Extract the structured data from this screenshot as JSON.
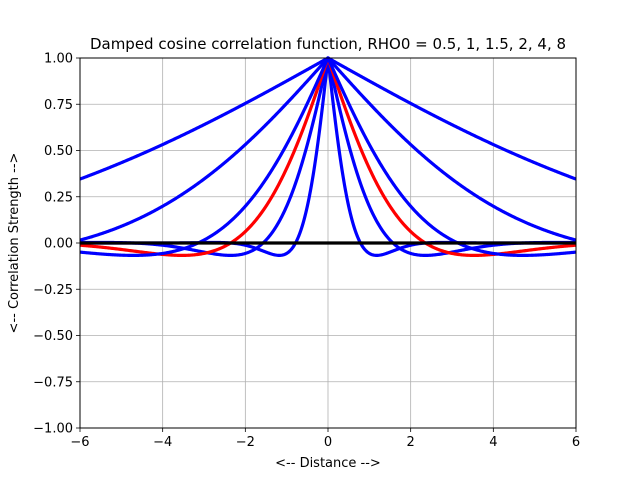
{
  "chart_data": {
    "type": "line",
    "title": "Damped cosine correlation function, RHO0 = 0.5, 1, 1.5, 2, 4, 8",
    "xlabel": "<-- Distance -->",
    "ylabel": "<-- Correlation Strength -->",
    "xlim": [
      -6,
      6
    ],
    "ylim": [
      -1,
      1
    ],
    "xticks": [
      -6,
      -4,
      -2,
      0,
      2,
      4,
      6
    ],
    "xtick_labels": [
      "−6",
      "−4",
      "−2",
      "0",
      "2",
      "4",
      "6"
    ],
    "yticks": [
      -1.0,
      -0.75,
      -0.5,
      -0.25,
      0.0,
      0.25,
      0.5,
      0.75,
      1.0
    ],
    "ytick_labels": [
      "−1.00",
      "−0.75",
      "−0.50",
      "−0.25",
      "0.00",
      "0.25",
      "0.50",
      "0.75",
      "1.00"
    ],
    "grid": true,
    "legend": "none",
    "formula": "exp(-|x|/rho0) * cos(|x|/rho0)",
    "x": [
      -6.0,
      -5.5,
      -5.0,
      -4.5,
      -4.0,
      -3.5,
      -3.0,
      -2.5,
      -2.0,
      -1.75,
      -1.5,
      -1.25,
      -1.0,
      -0.75,
      -0.5,
      -0.25,
      0.0,
      0.25,
      0.5,
      0.75,
      1.0,
      1.25,
      1.5,
      1.75,
      2.0,
      2.5,
      3.0,
      3.5,
      4.0,
      4.5,
      5.0,
      5.5,
      6.0
    ],
    "series": [
      {
        "rho0": 0.5,
        "color": "#0000ff",
        "values": [
          0.0,
          0.0,
          0.0,
          0.0,
          0.0,
          -0.0,
          0.0,
          0.0,
          -0.0,
          -0.01,
          -0.01,
          0.02,
          -0.06,
          -0.02,
          0.2,
          0.53,
          1.0,
          0.53,
          0.2,
          -0.02,
          -0.06,
          0.02,
          -0.01,
          -0.01,
          -0.0,
          0.0,
          0.0,
          -0.0,
          0.0,
          0.0,
          0.0,
          0.0,
          0.0
        ]
      },
      {
        "rho0": 1.0,
        "color": "#0000ff",
        "values": [
          0.0,
          0.0,
          0.0,
          -0.0,
          -0.01,
          -0.03,
          -0.05,
          -0.07,
          -0.06,
          -0.03,
          0.02,
          0.09,
          0.2,
          0.35,
          0.53,
          0.75,
          1.0,
          0.75,
          0.53,
          0.35,
          0.2,
          0.09,
          0.02,
          -0.03,
          -0.06,
          -0.07,
          -0.05,
          -0.03,
          -0.01,
          -0.0,
          0.0,
          0.0,
          0.0
        ]
      },
      {
        "rho0": 1.5,
        "color": "#ff0000",
        "values": [
          -0.01,
          -0.02,
          -0.03,
          -0.05,
          -0.06,
          -0.07,
          -0.06,
          -0.02,
          0.06,
          0.12,
          0.2,
          0.3,
          0.41,
          0.53,
          0.67,
          0.83,
          1.0,
          0.83,
          0.67,
          0.53,
          0.41,
          0.3,
          0.2,
          0.12,
          0.06,
          -0.02,
          -0.06,
          -0.07,
          -0.06,
          -0.05,
          -0.03,
          -0.02,
          -0.01
        ]
      },
      {
        "rho0": 2.0,
        "color": "#0000ff",
        "values": [
          -0.05,
          -0.06,
          -0.07,
          -0.07,
          -0.06,
          -0.03,
          0.02,
          0.09,
          0.2,
          0.26,
          0.35,
          0.43,
          0.53,
          0.64,
          0.75,
          0.88,
          1.0,
          0.88,
          0.75,
          0.64,
          0.53,
          0.43,
          0.35,
          0.26,
          0.2,
          0.09,
          0.02,
          -0.03,
          -0.06,
          -0.07,
          -0.07,
          -0.06,
          -0.05
        ]
      },
      {
        "rho0": 4.0,
        "color": "#0000ff",
        "values": [
          0.02,
          0.05,
          0.09,
          0.14,
          0.2,
          0.27,
          0.35,
          0.43,
          0.53,
          0.58,
          0.64,
          0.69,
          0.75,
          0.81,
          0.88,
          0.94,
          1.0,
          0.94,
          0.88,
          0.81,
          0.75,
          0.69,
          0.64,
          0.58,
          0.53,
          0.43,
          0.35,
          0.27,
          0.2,
          0.14,
          0.09,
          0.05,
          0.02
        ]
      },
      {
        "rho0": 8.0,
        "color": "#0000ff",
        "values": [
          0.35,
          0.38,
          0.43,
          0.48,
          0.53,
          0.59,
          0.64,
          0.69,
          0.75,
          0.78,
          0.81,
          0.84,
          0.88,
          0.91,
          0.94,
          0.97,
          1.0,
          0.97,
          0.94,
          0.91,
          0.88,
          0.84,
          0.81,
          0.78,
          0.75,
          0.69,
          0.64,
          0.59,
          0.53,
          0.48,
          0.43,
          0.38,
          0.35
        ]
      }
    ],
    "zero_line": {
      "color": "#000000",
      "y": 0
    }
  }
}
